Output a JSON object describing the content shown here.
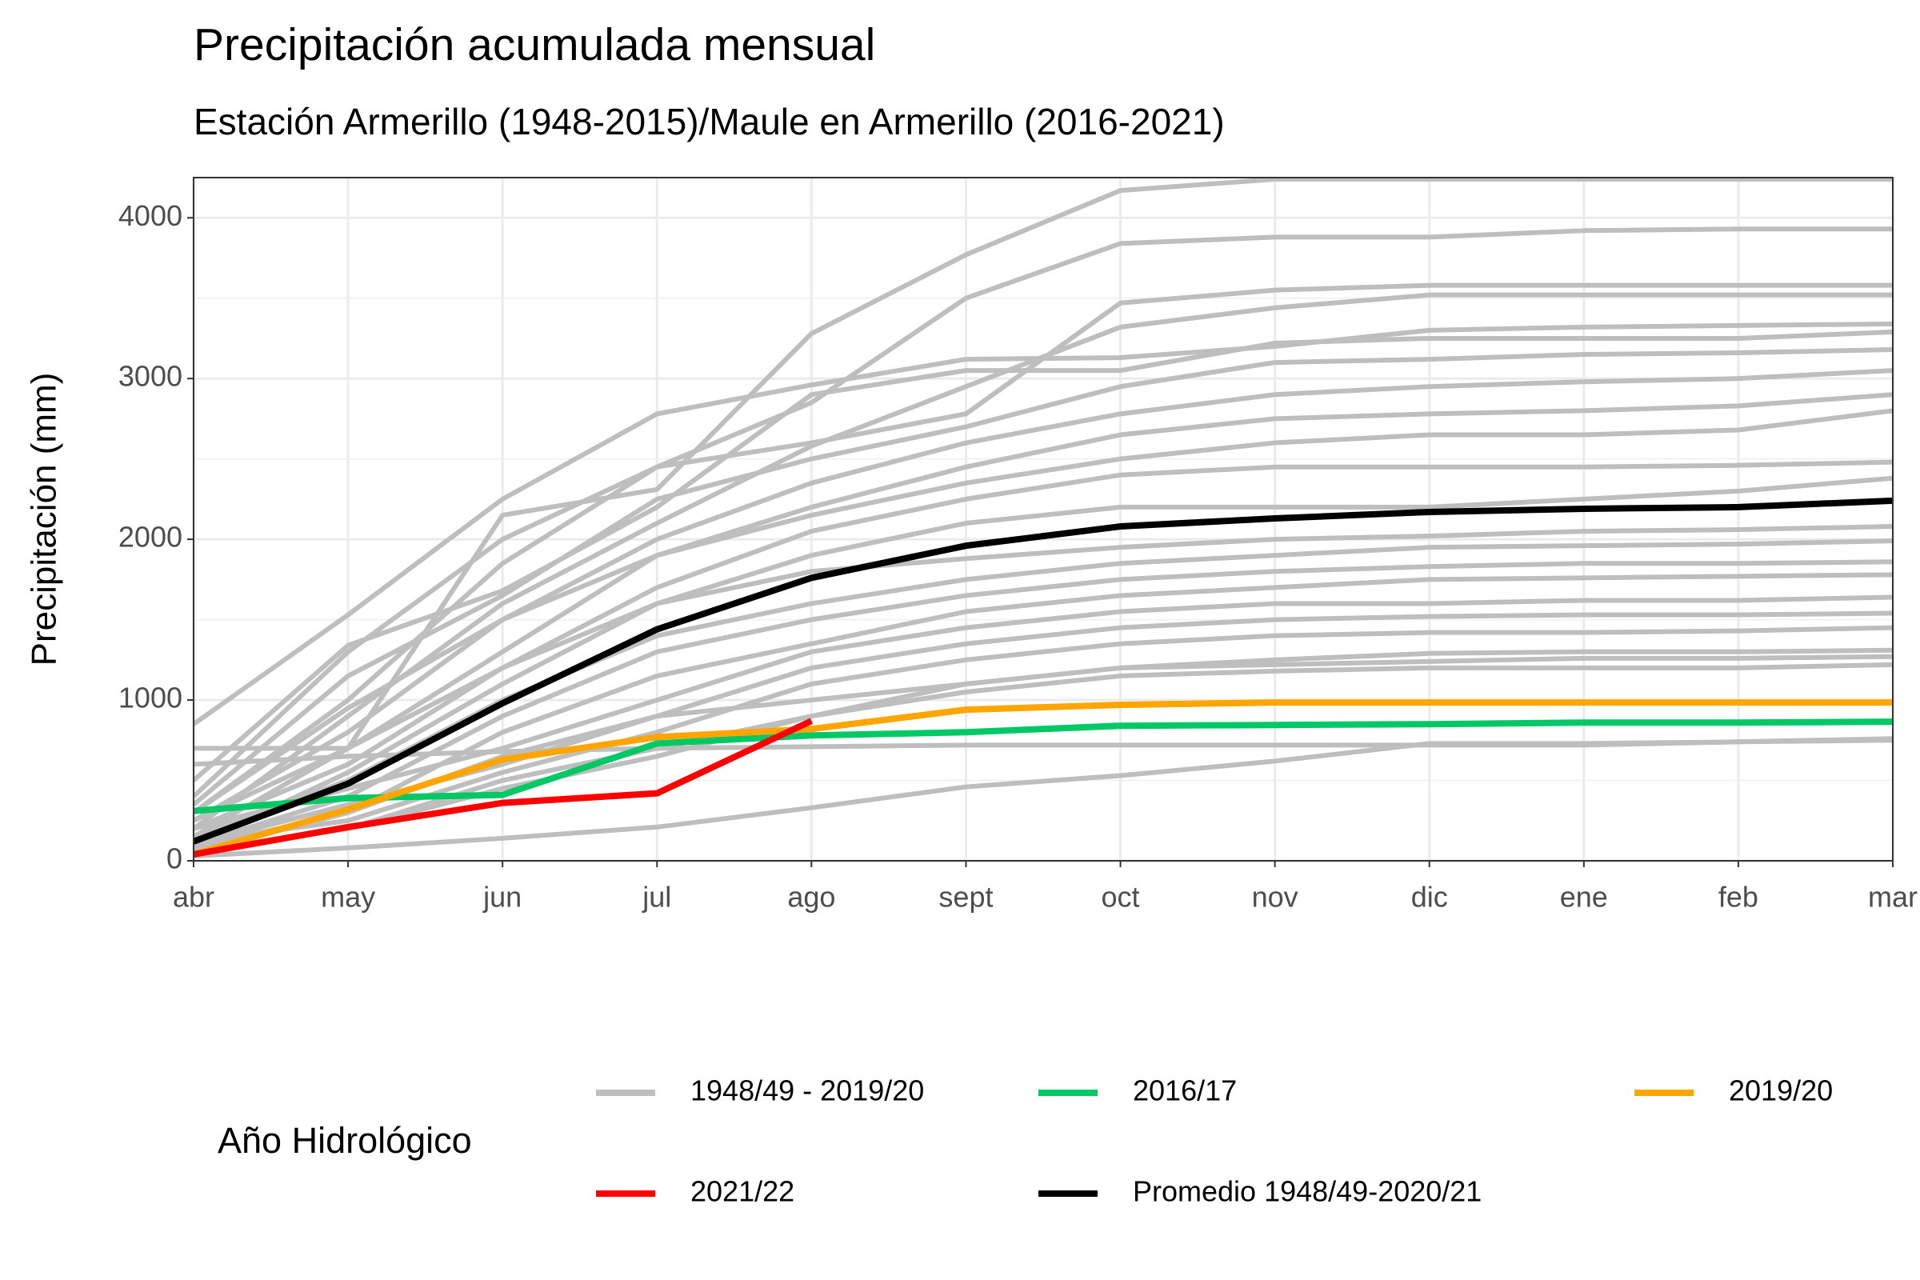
{
  "chart_data": {
    "type": "line",
    "title": "Precipitación acumulada mensual",
    "subtitle": "Estación Armerillo (1948-2015)/Maule en Armerillo (2016-2021)",
    "y_label": "Precipitación (mm)",
    "legend_title": "Año Hidrológico",
    "categories": [
      "abr",
      "may",
      "jun",
      "jul",
      "ago",
      "sept",
      "oct",
      "nov",
      "dic",
      "ene",
      "feb",
      "mar"
    ],
    "ylim": [
      0,
      4250
    ],
    "yticks": [
      0,
      1000,
      2000,
      3000,
      4000
    ],
    "grid": true,
    "series": [
      {
        "name": "1948/49 - 2019/20",
        "color": "#bebebe",
        "values": [
          850,
          1530,
          2250,
          2780,
          2960,
          3120,
          3130,
          3200,
          3300,
          3320,
          3330,
          3340
        ]
      },
      {
        "name": "1948/49 - 2019/20",
        "color": "#bebebe",
        "values": [
          700,
          700,
          2150,
          2310,
          3280,
          3770,
          4170,
          4240,
          4240,
          4240,
          4240,
          4240
        ]
      },
      {
        "name": "1948/49 - 2019/20",
        "color": "#bebebe",
        "values": [
          300,
          1000,
          1850,
          2450,
          2850,
          3500,
          3840,
          3880,
          3880,
          3920,
          3930,
          3930
        ]
      },
      {
        "name": "1948/49 - 2019/20",
        "color": "#bebebe",
        "values": [
          400,
          1300,
          2000,
          2450,
          2600,
          2780,
          3470,
          3550,
          3580,
          3580,
          3580,
          3580
        ]
      },
      {
        "name": "1948/49 - 2019/20",
        "color": "#bebebe",
        "values": [
          200,
          900,
          1600,
          2100,
          2580,
          2950,
          3320,
          3440,
          3520,
          3520,
          3520,
          3520
        ]
      },
      {
        "name": "1948/49 - 2019/20",
        "color": "#bebebe",
        "values": [
          500,
          1340,
          1680,
          2200,
          2900,
          3050,
          3050,
          3220,
          3250,
          3250,
          3250,
          3290
        ]
      },
      {
        "name": "1948/49 - 2019/20",
        "color": "#bebebe",
        "values": [
          350,
          1150,
          1650,
          2250,
          2500,
          2700,
          2950,
          3100,
          3120,
          3150,
          3160,
          3180
        ]
      },
      {
        "name": "1948/49 - 2019/20",
        "color": "#bebebe",
        "values": [
          250,
          800,
          1500,
          2000,
          2350,
          2600,
          2780,
          2900,
          2950,
          2980,
          3000,
          3050
        ]
      },
      {
        "name": "1948/49 - 2019/20",
        "color": "#bebebe",
        "values": [
          150,
          700,
          1300,
          1900,
          2200,
          2450,
          2650,
          2750,
          2780,
          2800,
          2830,
          2900
        ]
      },
      {
        "name": "1948/49 - 2019/20",
        "color": "#bebebe",
        "values": [
          300,
          950,
          1500,
          1900,
          2150,
          2350,
          2500,
          2600,
          2650,
          2650,
          2680,
          2800
        ]
      },
      {
        "name": "1948/49 - 2019/20",
        "color": "#bebebe",
        "values": [
          200,
          600,
          1200,
          1700,
          2050,
          2250,
          2400,
          2450,
          2450,
          2450,
          2460,
          2480
        ]
      },
      {
        "name": "1948/49 - 2019/20",
        "color": "#bebebe",
        "values": [
          100,
          550,
          1100,
          1600,
          1900,
          2100,
          2200,
          2200,
          2200,
          2250,
          2300,
          2380
        ]
      },
      {
        "name": "1948/49 - 2019/20",
        "color": "#bebebe",
        "values": [
          250,
          700,
          1200,
          1600,
          1800,
          1880,
          1950,
          2000,
          2020,
          2050,
          2060,
          2080
        ]
      },
      {
        "name": "1948/49 - 2019/20",
        "color": "#bebebe",
        "values": [
          150,
          500,
          1000,
          1400,
          1600,
          1750,
          1850,
          1900,
          1950,
          1960,
          1970,
          1990
        ]
      },
      {
        "name": "1948/49 - 2019/20",
        "color": "#bebebe",
        "values": [
          100,
          400,
          900,
          1300,
          1500,
          1650,
          1750,
          1800,
          1830,
          1850,
          1850,
          1860
        ]
      },
      {
        "name": "1948/49 - 2019/20",
        "color": "#bebebe",
        "values": [
          80,
          300,
          800,
          1150,
          1350,
          1550,
          1650,
          1700,
          1750,
          1760,
          1770,
          1780
        ]
      },
      {
        "name": "1948/49 - 2019/20",
        "color": "#bebebe",
        "values": [
          200,
          450,
          700,
          1000,
          1300,
          1450,
          1550,
          1600,
          1600,
          1620,
          1620,
          1640
        ]
      },
      {
        "name": "1948/49 - 2019/20",
        "color": "#bebebe",
        "values": [
          50,
          300,
          650,
          900,
          1200,
          1350,
          1450,
          1500,
          1520,
          1530,
          1530,
          1540
        ]
      },
      {
        "name": "1948/49 - 2019/20",
        "color": "#bebebe",
        "values": [
          120,
          250,
          550,
          800,
          1100,
          1250,
          1350,
          1400,
          1420,
          1420,
          1430,
          1450
        ]
      },
      {
        "name": "1948/49 - 2019/20",
        "color": "#bebebe",
        "values": [
          60,
          200,
          450,
          650,
          900,
          1100,
          1200,
          1250,
          1290,
          1300,
          1300,
          1310
        ]
      },
      {
        "name": "1948/49 - 2019/20",
        "color": "#bebebe",
        "values": [
          100,
          350,
          600,
          900,
          1000,
          1100,
          1200,
          1220,
          1240,
          1260,
          1260,
          1270
        ]
      },
      {
        "name": "1948/49 - 2019/20",
        "color": "#bebebe",
        "values": [
          50,
          200,
          500,
          700,
          900,
          1050,
          1150,
          1180,
          1200,
          1200,
          1200,
          1220
        ]
      },
      {
        "name": "1948/49 - 2019/20",
        "color": "#bebebe",
        "values": [
          600,
          650,
          680,
          700,
          710,
          720,
          720,
          720,
          720,
          720,
          740,
          760
        ]
      },
      {
        "name": "1948/49 - 2019/20",
        "color": "#bebebe",
        "values": [
          30,
          80,
          140,
          210,
          330,
          460,
          530,
          620,
          730,
          730,
          740,
          750
        ]
      },
      {
        "name": "2016/17",
        "color": "#00c864",
        "values": [
          310,
          390,
          410,
          730,
          780,
          800,
          840,
          845,
          850,
          860,
          860,
          865
        ]
      },
      {
        "name": "2019/20",
        "color": "#ffa500",
        "values": [
          40,
          320,
          630,
          770,
          820,
          940,
          970,
          985,
          985,
          985,
          985,
          985
        ]
      },
      {
        "name": "2021/22",
        "color": "#ff0000",
        "values": [
          40,
          210,
          360,
          420,
          870,
          null,
          null,
          null,
          null,
          null,
          null,
          null
        ]
      },
      {
        "name": "Promedio 1948/49-2020/21",
        "color": "#000000",
        "values": [
          120,
          480,
          980,
          1440,
          1760,
          1960,
          2080,
          2130,
          2170,
          2190,
          2200,
          2240
        ]
      }
    ]
  }
}
